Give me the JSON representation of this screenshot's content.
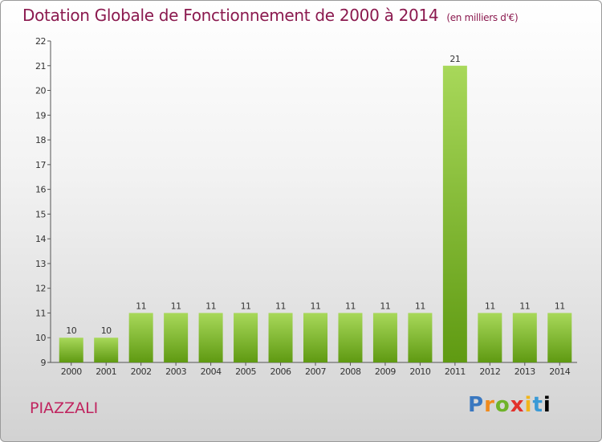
{
  "title": "Dotation Globale de Fonctionnement de 2000 à 2014",
  "subtitle": "(en milliers d'€)",
  "commune": "PIAZZALI",
  "logo": [
    "P",
    "r",
    "o",
    "x",
    "i",
    "t",
    "i"
  ],
  "colors": {
    "title": "#8b1a4f",
    "commune": "#c0245f",
    "bar_light": "#a8d85a",
    "bar_dark": "#5f9a12"
  },
  "chart_data": {
    "type": "bar",
    "title": "Dotation Globale de Fonctionnement de 2000 à 2014",
    "xlabel": "",
    "ylabel": "",
    "categories": [
      "2000",
      "2001",
      "2002",
      "2003",
      "2004",
      "2005",
      "2006",
      "2007",
      "2008",
      "2009",
      "2010",
      "2011",
      "2012",
      "2013",
      "2014"
    ],
    "values": [
      10,
      10,
      11,
      11,
      11,
      11,
      11,
      11,
      11,
      11,
      11,
      21,
      11,
      11,
      11
    ],
    "ylim": [
      9,
      22
    ],
    "yticks": [
      9,
      10,
      11,
      12,
      13,
      14,
      15,
      16,
      17,
      18,
      19,
      20,
      21,
      22
    ],
    "grid": false
  }
}
